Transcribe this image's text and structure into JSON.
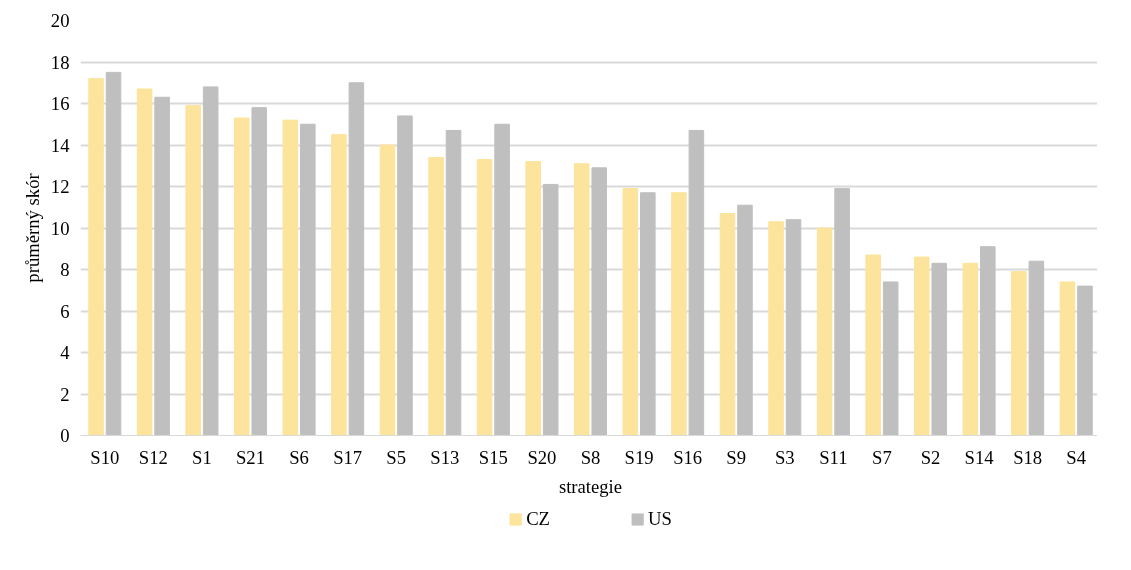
{
  "chart_data": {
    "type": "bar",
    "xlabel": "strategie",
    "ylabel": "průměrný skór",
    "categories": [
      "S10",
      "S12",
      "S1",
      "S21",
      "S6",
      "S17",
      "S5",
      "S13",
      "S15",
      "S20",
      "S8",
      "S19",
      "S16",
      "S9",
      "S3",
      "S11",
      "S7",
      "S2",
      "S14",
      "S18",
      "S4"
    ],
    "series": [
      {
        "name": "CZ",
        "color": "#fce49c",
        "values": [
          17.2,
          16.7,
          15.9,
          15.3,
          15.2,
          14.5,
          14.0,
          13.4,
          13.3,
          13.2,
          13.1,
          11.9,
          11.7,
          10.7,
          10.3,
          10.0,
          8.7,
          8.6,
          8.3,
          7.9,
          7.4
        ]
      },
      {
        "name": "US",
        "color": "#bfbfbf",
        "values": [
          17.5,
          16.3,
          16.8,
          15.8,
          15.0,
          17.0,
          15.4,
          14.7,
          15.0,
          12.1,
          12.9,
          11.7,
          14.7,
          11.1,
          10.4,
          11.9,
          7.4,
          8.3,
          9.1,
          8.4,
          7.2
        ]
      }
    ],
    "ylim": [
      0,
      20
    ],
    "yticks": [
      0,
      2,
      4,
      6,
      8,
      10,
      12,
      14,
      16,
      18,
      20
    ],
    "grid": "y",
    "legend": "bottom"
  }
}
